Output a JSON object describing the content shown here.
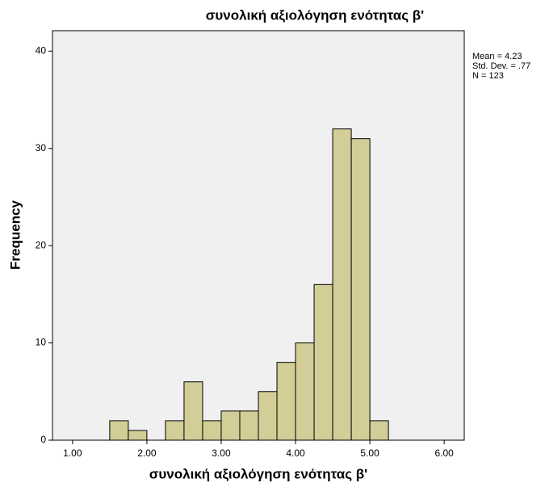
{
  "chart_data": {
    "type": "histogram",
    "title": "συνολική αξιολόγηση ενότητας β'",
    "xlabel": "συνολική αξιολόγηση ενότητας β'",
    "ylabel": "Frequency",
    "bins": [
      1.5,
      1.75,
      2.0,
      2.25,
      2.5,
      2.75,
      3.0,
      3.25,
      3.5,
      3.75,
      4.0,
      4.25,
      4.5,
      4.75,
      5.0,
      5.25
    ],
    "values": [
      2,
      1,
      0,
      2,
      6,
      2,
      3,
      3,
      5,
      8,
      10,
      16,
      32,
      31,
      2
    ],
    "color": "#d3ce97",
    "background": "#f0f0f0",
    "xlim": [
      0.73,
      6.27
    ],
    "ylim": [
      0,
      42.1
    ],
    "xticks": [
      {
        "value": 1,
        "label": "1.00"
      },
      {
        "value": 2,
        "label": "2.00"
      },
      {
        "value": 3,
        "label": "3.00"
      },
      {
        "value": 4,
        "label": "4.00"
      },
      {
        "value": 5,
        "label": "5.00"
      },
      {
        "value": 6,
        "label": "6.00"
      }
    ],
    "yticks": [
      0,
      10,
      20,
      30,
      40
    ],
    "annotations": [
      "Mean = 4.23",
      "Std. Dev. = .77",
      "N = 123"
    ]
  }
}
